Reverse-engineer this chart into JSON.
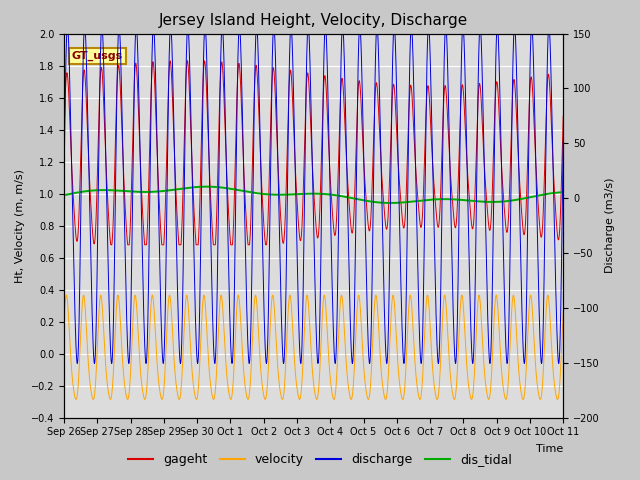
{
  "title": "Jersey Island Height, Velocity, Discharge",
  "xlabel": "Time",
  "ylabel_left": "Ht, Velocity (m, m/s)",
  "ylabel_right": "Discharge (m3/s)",
  "ylim_left": [
    -0.4,
    2.0
  ],
  "ylim_right": [
    -200,
    150
  ],
  "fig_bg_color": "#c8c8c8",
  "plot_bg_color": "#dcdcdc",
  "annotation_text": "GT_usgs",
  "annotation_bg": "#ffff99",
  "annotation_border": "#b8860b",
  "x_tick_labels": [
    "Sep 26",
    "Sep 27",
    "Sep 28",
    "Sep 29",
    "Sep 30",
    "Oct 1",
    "Oct 2",
    "Oct 3",
    "Oct 4",
    "Oct 5",
    "Oct 6",
    "Oct 7",
    "Oct 8",
    "Oct 9",
    "Oct 10",
    "Oct 11"
  ],
  "colors": {
    "gageht": "#dd0000",
    "velocity": "#ffa500",
    "discharge": "#0000dd",
    "dis_tidal": "#00aa00"
  },
  "n_days": 15,
  "tidal_period_hours": 12.4,
  "gageht_base": 1.2,
  "gageht_amp": 0.5,
  "velocity_amp": 0.32,
  "discharge_amp": 150,
  "dis_tidal_mean": 0.99,
  "dis_tidal_amp": 0.04,
  "grid_color": "#ffffff",
  "title_fontsize": 11,
  "label_fontsize": 8,
  "tick_fontsize": 7,
  "legend_fontsize": 9
}
